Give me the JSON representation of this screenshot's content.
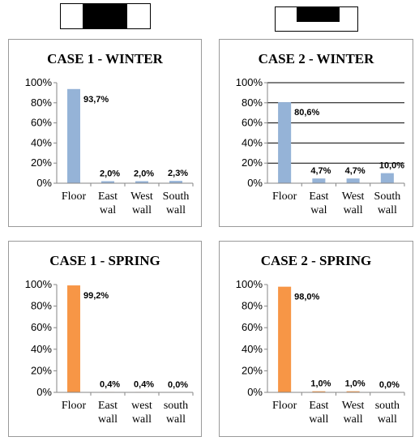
{
  "icons": [
    {
      "name": "case-1-geometry-icon"
    },
    {
      "name": "case-2-geometry-icon"
    }
  ],
  "chart_data": [
    {
      "type": "bar",
      "title": "CASE 1 - WINTER",
      "categories": [
        [
          "Floor"
        ],
        [
          "East",
          "wal"
        ],
        [
          "West",
          "wall"
        ],
        [
          "South",
          "wall"
        ]
      ],
      "values": [
        93.7,
        2.0,
        2.0,
        2.3
      ],
      "value_labels": [
        "93,7%",
        "2,0%",
        "2,0%",
        "2,3%"
      ],
      "ylim": [
        0,
        100
      ],
      "yticks": [
        "0%",
        "20%",
        "40%",
        "60%",
        "80%",
        "100%"
      ],
      "color": "#95b3d7",
      "grid": false
    },
    {
      "type": "bar",
      "title": "CASE 2 - WINTER",
      "categories": [
        [
          "Floor"
        ],
        [
          "East",
          "wal"
        ],
        [
          "West",
          "wall"
        ],
        [
          "South",
          "wall"
        ]
      ],
      "values": [
        80.6,
        4.7,
        4.7,
        10.0
      ],
      "value_labels": [
        "80,6%",
        "4,7%",
        "4,7%",
        "10,0%"
      ],
      "ylim": [
        0,
        100
      ],
      "yticks": [
        "0%",
        "20%",
        "40%",
        "60%",
        "80%",
        "100%"
      ],
      "color": "#95b3d7",
      "grid": true
    },
    {
      "type": "bar",
      "title": "CASE 1 - SPRING",
      "categories": [
        [
          "Floor"
        ],
        [
          "East",
          "wall"
        ],
        [
          "west",
          "wall"
        ],
        [
          "south",
          "wall"
        ]
      ],
      "values": [
        99.2,
        0.4,
        0.4,
        0.0
      ],
      "value_labels": [
        "99,2%",
        "0,4%",
        "0,4%",
        "0,0%"
      ],
      "ylim": [
        0,
        100
      ],
      "yticks": [
        "0%",
        "20%",
        "40%",
        "60%",
        "80%",
        "100%"
      ],
      "color": "#f79646",
      "grid": false
    },
    {
      "type": "bar",
      "title": "CASE 2 - SPRING",
      "categories": [
        [
          "Floor"
        ],
        [
          "East",
          "wall"
        ],
        [
          "West",
          "wall"
        ],
        [
          "south",
          "wall"
        ]
      ],
      "values": [
        98.0,
        1.0,
        1.0,
        0.0
      ],
      "value_labels": [
        "98,0%",
        "1,0%",
        "1,0%",
        "0,0%"
      ],
      "ylim": [
        0,
        100
      ],
      "yticks": [
        "0%",
        "20%",
        "40%",
        "60%",
        "80%",
        "100%"
      ],
      "color": "#f79646",
      "grid": false
    }
  ]
}
